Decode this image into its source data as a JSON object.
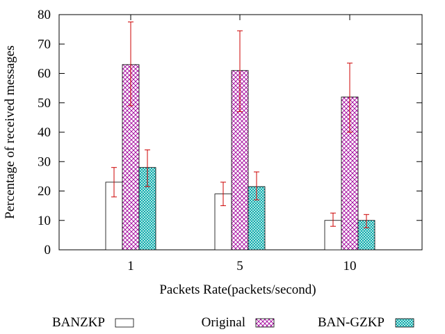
{
  "chart_data": {
    "type": "bar",
    "title": "",
    "xlabel": "Packets Rate(packets/second)",
    "ylabel": "Percentage of received messages",
    "categories": [
      "1",
      "5",
      "10"
    ],
    "ylim": [
      0,
      80
    ],
    "yticks": [
      0,
      10,
      20,
      30,
      40,
      50,
      60,
      70,
      80
    ],
    "grid": false,
    "legend_position": "bottom",
    "series": [
      {
        "name": "BANZKP",
        "values": [
          23,
          19,
          10
        ],
        "error_low": [
          18,
          15,
          8
        ],
        "error_high": [
          28,
          23,
          12.5
        ],
        "pattern": "none"
      },
      {
        "name": "Original",
        "values": [
          63,
          61,
          52
        ],
        "error_low": [
          49,
          47,
          40
        ],
        "error_high": [
          77.5,
          74.5,
          63.5
        ],
        "pattern": "crosshatch",
        "color": "#a0009a"
      },
      {
        "name": "BAN-GZKP",
        "values": [
          28,
          21.5,
          10
        ],
        "error_low": [
          21.5,
          17,
          7.5
        ],
        "error_high": [
          34,
          26.5,
          12
        ],
        "pattern": "dots",
        "color": "#00a0a0"
      }
    ],
    "error_bar_color": "#cc0000"
  }
}
